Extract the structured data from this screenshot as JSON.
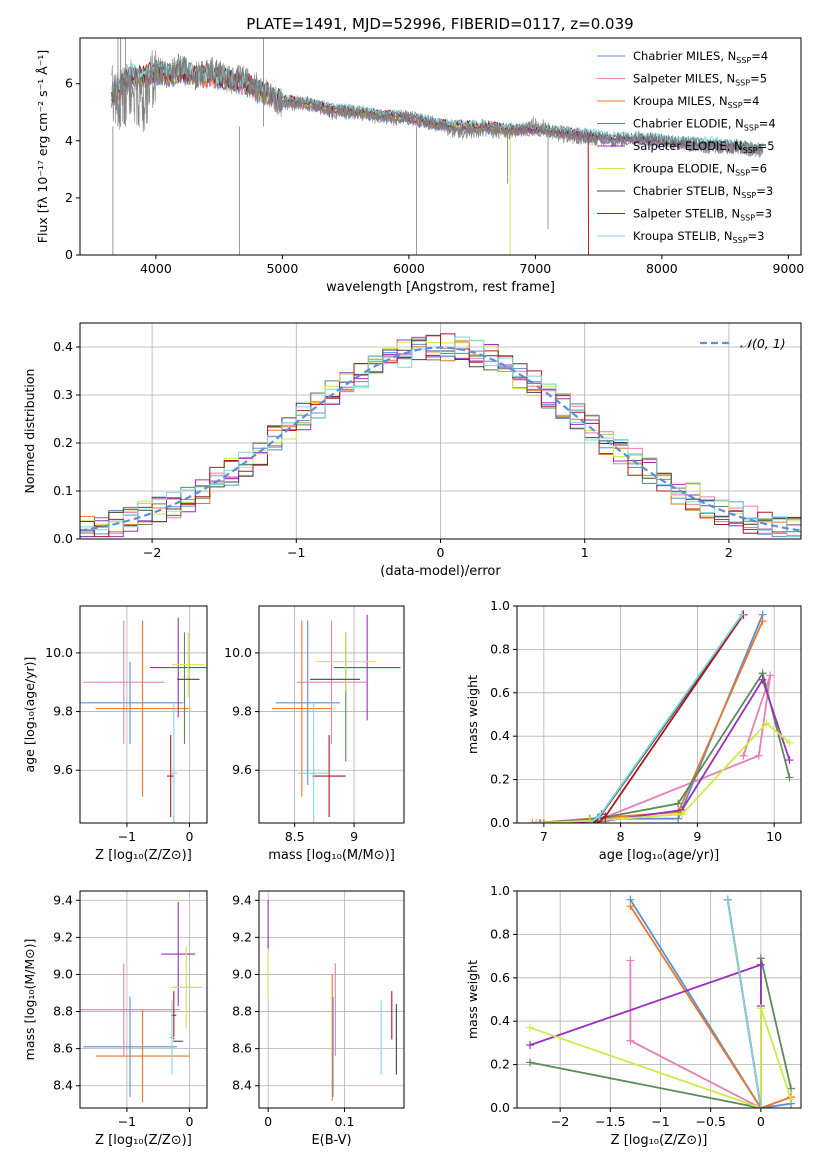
{
  "figure": {
    "title": "PLATE=1491, MJD=52996, FIBERID=0117, z=0.039"
  },
  "series_names": [
    "Chabrier MILES",
    "Salpeter MILES",
    "Kroupa MILES",
    "Chabrier ELODIE",
    "Salpeter ELODIE",
    "Kroupa ELODIE",
    "Chabrier STELIB",
    "Salpeter STELIB",
    "Kroupa STELIB"
  ],
  "n_ssp": [
    4,
    5,
    4,
    4,
    5,
    6,
    3,
    3,
    3
  ],
  "colors": [
    "#5b8fd9",
    "#e67fb6",
    "#e8792a",
    "#5a8a5e",
    "#9b2fb8",
    "#cfe84a",
    "#444444",
    "#b0171f",
    "#7fd6df"
  ],
  "chart_data": [
    {
      "id": "spectrum",
      "type": "line",
      "title": "PLATE=1491, MJD=52996, FIBERID=0117, z=0.039",
      "xlabel": "wavelength [Angstrom, rest frame]",
      "ylabel": "Flux [fλ 10⁻¹⁷ erg cm⁻² s⁻¹ Å⁻¹]",
      "xlim": [
        3400,
        9100
      ],
      "ylim": [
        0,
        7.6
      ],
      "xticks": [
        4000,
        5000,
        6000,
        7000,
        8000,
        9000
      ],
      "yticks": [
        0,
        2,
        4,
        6
      ],
      "grid": false,
      "legend_loc": "top-right",
      "data_x": [
        3650,
        3700,
        3800,
        3900,
        4000,
        4100,
        4200,
        4300,
        4400,
        4500,
        4600,
        4700,
        4800,
        4900,
        5000,
        5200,
        5400,
        5600,
        5800,
        6000,
        6200,
        6400,
        6600,
        6800,
        7000,
        7200,
        7400,
        7600,
        7800,
        8000,
        8200,
        8400,
        8600,
        8800
      ],
      "data_y": [
        5.8,
        5.4,
        5.9,
        5.2,
        6.5,
        6.3,
        6.6,
        6.2,
        6.5,
        6.4,
        6.1,
        6.2,
        5.9,
        5.6,
        5.3,
        5.3,
        5.0,
        5.0,
        4.8,
        4.8,
        4.6,
        4.3,
        4.4,
        4.3,
        4.6,
        4.2,
        4.1,
        4.0,
        4.1,
        4.0,
        3.9,
        3.8,
        3.8,
        3.6
      ],
      "model_y": [
        5.6,
        5.8,
        6.3,
        6.2,
        6.4,
        6.3,
        6.4,
        6.3,
        6.3,
        6.2,
        6.1,
        6.0,
        5.8,
        5.6,
        5.4,
        5.3,
        5.1,
        5.0,
        4.9,
        4.8,
        4.6,
        4.5,
        4.5,
        4.4,
        4.4,
        4.3,
        4.2,
        4.1,
        4.1,
        4.0,
        3.9,
        3.9,
        3.8,
        3.7
      ]
    },
    {
      "id": "residuals",
      "type": "step",
      "xlabel": "(data-model)/error",
      "ylabel": "Normed distribution",
      "xlim": [
        -2.5,
        2.5
      ],
      "ylim": [
        0,
        0.45
      ],
      "xticks": [
        -2,
        -1,
        0,
        1,
        2
      ],
      "yticks": [
        0.0,
        0.1,
        0.2,
        0.3,
        0.4
      ],
      "grid": true,
      "legend_loc": "top-right",
      "legend_label": "𝒩(0, 1)",
      "gaussian": {
        "mu": 0,
        "sigma": 1
      }
    },
    {
      "id": "age_vs_Z",
      "type": "errorbar",
      "xlabel": "Z [log₁₀(Z/Z⊙)]",
      "ylabel": "age  [log₁₀(age/yr)]",
      "xlim": [
        -1.75,
        0.28
      ],
      "ylim": [
        9.42,
        10.16
      ],
      "xticks": [
        -1,
        0
      ],
      "yticks": [
        9.6,
        9.8,
        10.0
      ],
      "grid": true,
      "points": [
        {
          "x": -0.95,
          "xerr": 0.85,
          "y": 9.83,
          "yerr": 0.14
        },
        {
          "x": -1.05,
          "xerr": 0.65,
          "y": 9.9,
          "yerr": 0.21
        },
        {
          "x": -0.75,
          "xerr": 0.75,
          "y": 9.81,
          "yerr": 0.3
        },
        {
          "x": -0.08,
          "xerr": 0.0,
          "y": 9.88,
          "yerr": 0.19
        },
        {
          "x": -0.18,
          "xerr": 0.45,
          "y": 9.95,
          "yerr": 0.17
        },
        {
          "x": -0.02,
          "xerr": 0.26,
          "y": 9.96,
          "yerr": 0.11
        },
        {
          "x": -0.02,
          "xerr": 0.18,
          "y": 9.91,
          "yerr": 0.0
        },
        {
          "x": -0.3,
          "xerr": 0.06,
          "y": 9.58,
          "yerr": 0.14
        },
        {
          "x": -0.25,
          "xerr": 0.05,
          "y": 9.59,
          "yerr": 0.24
        }
      ]
    },
    {
      "id": "age_vs_mass",
      "type": "errorbar",
      "xlabel": "mass [log₁₀(M/M⊙)]",
      "ylabel": "",
      "xlim": [
        8.2,
        9.42
      ],
      "ylim": [
        9.42,
        10.16
      ],
      "xticks": [
        8.5,
        9.0
      ],
      "yticks": [
        9.6,
        9.8,
        10.0
      ],
      "grid": true,
      "points": [
        {
          "x": 8.61,
          "xerr": 0.27,
          "y": 9.83,
          "yerr": 0.28
        },
        {
          "x": 8.81,
          "xerr": 0.29,
          "y": 9.9,
          "yerr": 0.21
        },
        {
          "x": 8.56,
          "xerr": 0.25,
          "y": 9.81,
          "yerr": 0.3
        },
        {
          "x": 8.93,
          "xerr": 0.0,
          "y": 9.85,
          "yerr": 0.22
        },
        {
          "x": 9.11,
          "xerr": 0.28,
          "y": 9.95,
          "yerr": 0.18
        },
        {
          "x": 8.93,
          "xerr": 0.25,
          "y": 9.97,
          "yerr": 0.1
        },
        {
          "x": 8.84,
          "xerr": 0.21,
          "y": 9.91,
          "yerr": 0.0
        },
        {
          "x": 8.79,
          "xerr": 0.14,
          "y": 9.58,
          "yerr": 0.14
        },
        {
          "x": 8.66,
          "xerr": 0.13,
          "y": 9.59,
          "yerr": 0.24
        }
      ]
    },
    {
      "id": "mw_vs_age",
      "type": "line",
      "xlabel": "age  [log₁₀(age/yr)]",
      "ylabel": "mass weight",
      "xlim": [
        6.65,
        10.35
      ],
      "ylim": [
        0,
        1.0
      ],
      "xticks": [
        7,
        8,
        9,
        10
      ],
      "yticks": [
        0.0,
        0.2,
        0.4,
        0.6,
        0.8,
        1.0
      ],
      "grid": true,
      "series": [
        {
          "x": [
            6.9,
            7.6,
            8.75,
            9.85
          ],
          "y": [
            0.0,
            0.02,
            0.02,
            0.96
          ]
        },
        {
          "x": [
            6.85,
            7.75,
            9.8,
            9.95,
            9.6
          ],
          "y": [
            0.0,
            0.02,
            0.31,
            0.68,
            0.31
          ]
        },
        {
          "x": [
            6.9,
            7.6,
            8.75,
            9.85
          ],
          "y": [
            0.0,
            0.02,
            0.05,
            0.93
          ]
        },
        {
          "x": [
            7.0,
            7.7,
            8.75,
            9.85,
            10.2
          ],
          "y": [
            0.0,
            0.02,
            0.09,
            0.69,
            0.21
          ]
        },
        {
          "x": [
            6.95,
            7.8,
            8.8,
            9.85,
            10.2
          ],
          "y": [
            0.0,
            0.01,
            0.06,
            0.66,
            0.29
          ]
        },
        {
          "x": [
            6.9,
            7.6,
            8.8,
            9.9,
            10.2
          ],
          "y": [
            0.0,
            0.01,
            0.04,
            0.46,
            0.37
          ]
        },
        {
          "x": [
            7.65,
            7.75,
            9.6
          ],
          "y": [
            0.0,
            0.04,
            0.96
          ]
        },
        {
          "x": [
            7.7,
            7.8,
            9.6
          ],
          "y": [
            0.0,
            0.03,
            0.96
          ]
        },
        {
          "x": [
            7.6,
            7.72,
            9.58
          ],
          "y": [
            0.0,
            0.03,
            0.96
          ]
        }
      ]
    },
    {
      "id": "mass_vs_Z",
      "type": "errorbar",
      "xlabel": "Z [log₁₀(Z/Z⊙)]",
      "ylabel": "mass [log₁₀(M/M⊙)]",
      "xlim": [
        -1.75,
        0.28
      ],
      "ylim": [
        8.28,
        9.45
      ],
      "xticks": [
        -1,
        0
      ],
      "yticks": [
        8.4,
        8.6,
        8.8,
        9.0,
        9.2,
        9.4
      ],
      "grid": true,
      "points": [
        {
          "x": -0.95,
          "xerr": 0.75,
          "y": 8.61,
          "yerr": 0.27
        },
        {
          "x": -1.05,
          "xerr": 0.9,
          "y": 8.81,
          "yerr": 0.25
        },
        {
          "x": -0.75,
          "xerr": 0.75,
          "y": 8.56,
          "yerr": 0.25
        },
        {
          "x": -0.02,
          "xerr": 0.22,
          "y": 8.93,
          "yerr": 0.0
        },
        {
          "x": -0.18,
          "xerr": 0.27,
          "y": 9.11,
          "yerr": 0.28
        },
        {
          "x": -0.05,
          "xerr": 0.25,
          "y": 8.93,
          "yerr": 0.22
        },
        {
          "x": -0.18,
          "xerr": 0.08,
          "y": 8.64,
          "yerr": 0.0
        },
        {
          "x": -0.25,
          "xerr": 0.04,
          "y": 8.78,
          "yerr": 0.13
        },
        {
          "x": -0.28,
          "xerr": 0.04,
          "y": 8.66,
          "yerr": 0.2
        }
      ]
    },
    {
      "id": "mass_vs_ebv",
      "type": "errorbar",
      "xlabel": "E(B-V)",
      "ylabel": "",
      "xlim": [
        -0.012,
        0.178
      ],
      "ylim": [
        8.28,
        9.45
      ],
      "xticks": [
        0.0,
        0.1
      ],
      "yticks": [
        8.4,
        8.6,
        8.8,
        9.0,
        9.2,
        9.4
      ],
      "grid": true,
      "points": [
        {
          "x": 0.085,
          "xerr": 0.0,
          "y": 8.61,
          "yerr": 0.27
        },
        {
          "x": 0.088,
          "xerr": 0.0,
          "y": 8.81,
          "yerr": 0.25
        },
        {
          "x": 0.084,
          "xerr": 0.0,
          "y": 8.66,
          "yerr": 0.34
        },
        {
          "x": 0.0,
          "xerr": 0.0,
          "y": 8.93,
          "yerr": 0.0
        },
        {
          "x": 0.0,
          "xerr": 0.0,
          "y": 9.27,
          "yerr": 0.13
        },
        {
          "x": 0.0,
          "xerr": 0.0,
          "y": 9.0,
          "yerr": 0.13
        },
        {
          "x": 0.168,
          "xerr": 0.0,
          "y": 8.65,
          "yerr": 0.19
        },
        {
          "x": 0.162,
          "xerr": 0.0,
          "y": 8.78,
          "yerr": 0.13
        },
        {
          "x": 0.148,
          "xerr": 0.0,
          "y": 8.66,
          "yerr": 0.2
        }
      ]
    },
    {
      "id": "mw_vs_Z",
      "type": "line",
      "xlabel": "Z [log₁₀(Z/Z⊙)]",
      "ylabel": "mass weight",
      "xlim": [
        -2.43,
        0.4
      ],
      "ylim": [
        0,
        1.0
      ],
      "xticks": [
        -2.0,
        -1.5,
        -1.0,
        -0.5,
        0.0
      ],
      "yticks": [
        0.0,
        0.2,
        0.4,
        0.6,
        0.8,
        1.0
      ],
      "grid": true,
      "series": [
        {
          "x": [
            -1.3,
            0.0,
            0.3,
            0.3
          ],
          "y": [
            0.96,
            0.0,
            0.02,
            0.05
          ]
        },
        {
          "x": [
            -1.3,
            -1.3,
            0.0,
            0.3
          ],
          "y": [
            0.68,
            0.31,
            0.0,
            0.05
          ]
        },
        {
          "x": [
            -1.3,
            0.0,
            0.3
          ],
          "y": [
            0.93,
            0.0,
            0.05
          ]
        },
        {
          "x": [
            -2.3,
            0.0,
            0.0,
            0.3
          ],
          "y": [
            0.21,
            0.0,
            0.69,
            0.09
          ]
        },
        {
          "x": [
            -2.3,
            0.0,
            0.0
          ],
          "y": [
            0.29,
            0.66,
            0.47
          ]
        },
        {
          "x": [
            -2.3,
            0.0,
            0.0,
            0.3
          ],
          "y": [
            0.37,
            0.0,
            0.46,
            0.04
          ]
        },
        {
          "x": [
            -0.33,
            0.0
          ],
          "y": [
            0.96,
            0.0
          ]
        },
        {
          "x": [
            -0.33,
            0.0
          ],
          "y": [
            0.96,
            0.0
          ]
        },
        {
          "x": [
            -0.33,
            0.0
          ],
          "y": [
            0.96,
            0.0
          ]
        }
      ]
    }
  ]
}
